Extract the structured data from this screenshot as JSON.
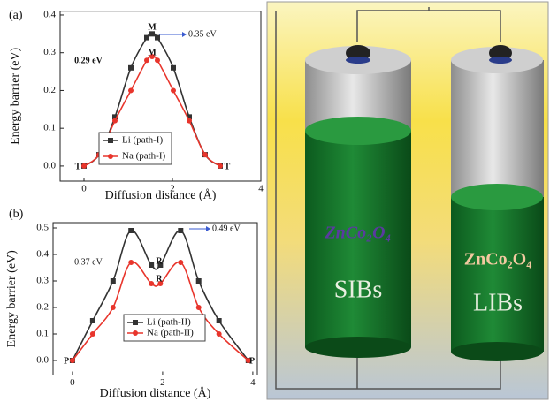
{
  "chart_data": [
    {
      "type": "line",
      "panel_label": "(a)",
      "xlabel": "Diffusion distance (Å)",
      "ylabel": "Energy barrier (eV)",
      "xlim": [
        -0.54,
        4
      ],
      "xticks": [
        0,
        2,
        4
      ],
      "ylim": [
        -0.04,
        0.41
      ],
      "yticks": [
        {
          "value": 0,
          "label": "0.0"
        },
        0.1,
        0.2,
        0.3,
        0.4
      ],
      "x": [
        0,
        0.34,
        0.7,
        1.06,
        1.42,
        1.54,
        1.66,
        2.02,
        2.38,
        2.74,
        3.08
      ],
      "series": [
        {
          "name": "Li (path-I)",
          "color": "#333333",
          "marker": "square",
          "values": [
            0,
            0.03,
            0.13,
            0.26,
            0.34,
            0.35,
            0.34,
            0.26,
            0.13,
            0.03,
            0
          ]
        },
        {
          "name": "Na (path-I)",
          "color": "#e8352c",
          "marker": "circle",
          "values": [
            0,
            0.03,
            0.12,
            0.2,
            0.28,
            0.29,
            0.28,
            0.2,
            0.12,
            0.03,
            0
          ]
        }
      ],
      "annotations": [
        "M",
        "M",
        "0.35 eV",
        "0.29 eV",
        "T",
        "T"
      ],
      "legend": "lower-left"
    },
    {
      "type": "line",
      "panel_label": "(b)",
      "xlabel": "Diffusion distance (Å)",
      "ylabel": "Energy barrier (eV)",
      "xlim": [
        -0.43,
        4.1
      ],
      "xticks": [
        0,
        2,
        4
      ],
      "ylim": [
        -0.055,
        0.52
      ],
      "yticks": [
        {
          "value": 0,
          "label": "0.0"
        },
        0.1,
        0.2,
        0.3,
        0.4,
        0.5
      ],
      "x": [
        0,
        0.45,
        0.9,
        1.3,
        1.75,
        1.95,
        2.4,
        2.8,
        3.25,
        3.9
      ],
      "series": [
        {
          "name": "Li (path-II)",
          "color": "#333333",
          "marker": "square",
          "values": [
            0,
            0.15,
            0.3,
            0.49,
            0.36,
            0.36,
            0.49,
            0.3,
            0.15,
            0
          ]
        },
        {
          "name": "Na (path-II)",
          "color": "#e8352c",
          "marker": "circle",
          "values": [
            0,
            0.1,
            0.2,
            0.37,
            0.29,
            0.29,
            0.37,
            0.2,
            0.1,
            0
          ]
        }
      ],
      "annotations": [
        "0.49 eV",
        "0.37 eV",
        "R",
        "R",
        "P",
        "P"
      ],
      "legend": "lower-center"
    }
  ],
  "illustration": {
    "left_battery": {
      "material": "ZnCo₂O₄",
      "label": "SIBs"
    },
    "right_battery": {
      "material": "ZnCo₂O₄",
      "label": "LIBs"
    }
  }
}
